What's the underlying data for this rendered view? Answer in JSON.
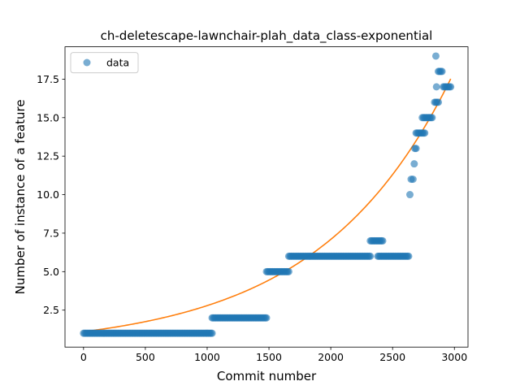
{
  "chart_data": {
    "type": "scatter",
    "title": "ch-deletescape-lawnchair-plah_data_class-exponential",
    "xlabel": "Commit number",
    "ylabel": "Number of instance of a feature",
    "xlim": [
      -150,
      3110
    ],
    "ylim": [
      0.1,
      19.6
    ],
    "xticks": [
      0,
      500,
      1000,
      1500,
      2000,
      2500,
      3000
    ],
    "yticks": [
      2.5,
      5.0,
      7.5,
      10.0,
      12.5,
      15.0,
      17.5
    ],
    "xtick_labels": [
      "0",
      "500",
      "1000",
      "1500",
      "2000",
      "2500",
      "3000"
    ],
    "ytick_labels": [
      "2.5",
      "5.0",
      "7.5",
      "10.0",
      "12.5",
      "15.0",
      "17.5"
    ],
    "legend": {
      "placement": "top-left",
      "entries": [
        "data"
      ]
    },
    "grid": false,
    "colors": {
      "data": "#1f77b4",
      "fit": "#ff7f0e"
    },
    "series": [
      {
        "name": "data",
        "kind": "scatter",
        "segments": [
          {
            "x_start": 0,
            "x_end": 1040,
            "y": 1
          },
          {
            "x_start": 1040,
            "x_end": 1480,
            "y": 2
          },
          {
            "x_start": 1480,
            "x_end": 1660,
            "y": 5
          },
          {
            "x_start": 1660,
            "x_end": 2320,
            "y": 6
          },
          {
            "x_start": 2320,
            "x_end": 2420,
            "y": 7
          },
          {
            "x_start": 2380,
            "x_end": 2630,
            "y": 6
          },
          {
            "x_start": 2690,
            "x_end": 2760,
            "y": 14
          },
          {
            "x_start": 2740,
            "x_end": 2820,
            "y": 15
          },
          {
            "x_start": 2840,
            "x_end": 2870,
            "y": 16
          },
          {
            "x_start": 2870,
            "x_end": 2900,
            "y": 18
          },
          {
            "x_start": 2910,
            "x_end": 2970,
            "y": 17
          }
        ],
        "points": [
          {
            "x": 2640,
            "y": 10
          },
          {
            "x": 2650,
            "y": 11
          },
          {
            "x": 2665,
            "y": 11
          },
          {
            "x": 2675,
            "y": 12
          },
          {
            "x": 2680,
            "y": 13
          },
          {
            "x": 2690,
            "y": 13
          },
          {
            "x": 2850,
            "y": 19
          },
          {
            "x": 2855,
            "y": 17
          }
        ]
      },
      {
        "kind": "line",
        "model": "exponential",
        "a": 1.1,
        "b": 0.000932,
        "x_range": [
          0,
          2970
        ]
      }
    ]
  }
}
